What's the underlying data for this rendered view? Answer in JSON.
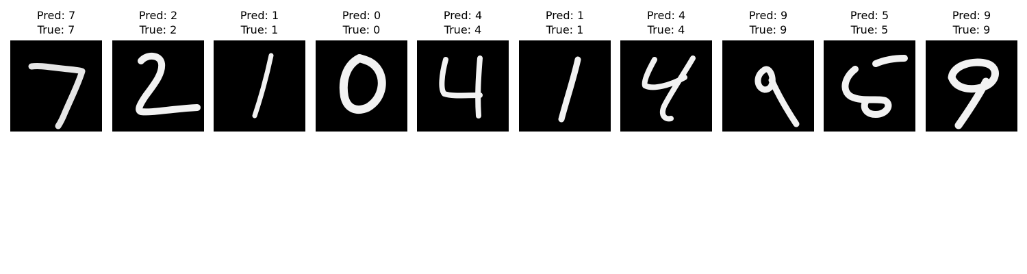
{
  "colors": {
    "background": "#ffffff",
    "image_background": "#000000",
    "stroke": "#f4f4f4"
  },
  "samples": [
    {
      "pred_label": "Pred: 7",
      "true_label": "True: 7",
      "digit_icon": "digit-7-icon"
    },
    {
      "pred_label": "Pred: 2",
      "true_label": "True: 2",
      "digit_icon": "digit-2-icon"
    },
    {
      "pred_label": "Pred: 1",
      "true_label": "True: 1",
      "digit_icon": "digit-1-icon"
    },
    {
      "pred_label": "Pred: 0",
      "true_label": "True: 0",
      "digit_icon": "digit-0-icon"
    },
    {
      "pred_label": "Pred: 4",
      "true_label": "True: 4",
      "digit_icon": "digit-4-icon"
    },
    {
      "pred_label": "Pred: 1",
      "true_label": "True: 1",
      "digit_icon": "digit-1-icon"
    },
    {
      "pred_label": "Pred: 4",
      "true_label": "True: 4",
      "digit_icon": "digit-4-icon"
    },
    {
      "pred_label": "Pred: 9",
      "true_label": "True: 9",
      "digit_icon": "digit-9-icon"
    },
    {
      "pred_label": "Pred: 5",
      "true_label": "True: 5",
      "digit_icon": "digit-5-icon"
    },
    {
      "pred_label": "Pred: 9",
      "true_label": "True: 9",
      "digit_icon": "digit-9-icon"
    }
  ]
}
